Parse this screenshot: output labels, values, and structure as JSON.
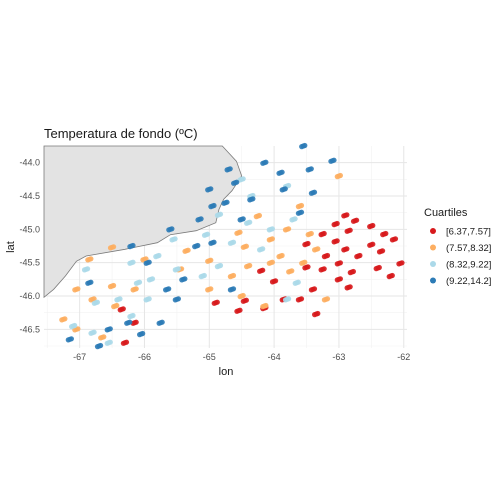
{
  "chart_data": {
    "type": "scatter",
    "title": "Temperatura de fondo (ºC)",
    "xlabel": "lon",
    "ylabel": "lat",
    "xlim": [
      -67.55,
      -61.95
    ],
    "ylim": [
      -46.78,
      -43.75
    ],
    "xticks": [
      -67,
      -66,
      -65,
      -64,
      -63,
      -62
    ],
    "yticks": [
      -44.0,
      -44.5,
      -45.0,
      -45.5,
      -46.0,
      -46.5
    ],
    "xtick_labels": [
      "-67",
      "-66",
      "-65",
      "-64",
      "-63",
      "-62"
    ],
    "ytick_labels": [
      "-44.0",
      "-44.5",
      "-45.0",
      "-45.5",
      "-46.0",
      "-46.5"
    ],
    "grid": true,
    "legend_position": "right",
    "legend": {
      "title": "Cuartiles",
      "entries": [
        {
          "label": "[6.37,7.57]",
          "color": "#d7191c"
        },
        {
          "label": "(7.57,8.32]",
          "color": "#fdae61"
        },
        {
          "label": "(8.32,9.22]",
          "color": "#abd9e9"
        },
        {
          "label": "(9.22,14.2]",
          "color": "#2c7bb6"
        }
      ]
    },
    "land_color": "#e3e3e3",
    "land_outline": [
      [
        -67.55,
        -43.75
      ],
      [
        -64.8,
        -43.75
      ],
      [
        -64.58,
        -43.98
      ],
      [
        -64.5,
        -44.2
      ],
      [
        -64.65,
        -44.42
      ],
      [
        -64.78,
        -44.55
      ],
      [
        -64.85,
        -44.7
      ],
      [
        -64.9,
        -44.9
      ],
      [
        -65.2,
        -45.02
      ],
      [
        -65.6,
        -45.08
      ],
      [
        -65.8,
        -45.2
      ],
      [
        -66.3,
        -45.3
      ],
      [
        -66.9,
        -45.4
      ],
      [
        -67.05,
        -45.48
      ],
      [
        -67.22,
        -45.7
      ],
      [
        -67.4,
        -45.9
      ],
      [
        -67.55,
        -46.02
      ]
    ],
    "series": [
      {
        "name": "[6.37,7.57]",
        "color": "#d7191c",
        "points": [
          [
            -62.9,
            -44.79
          ],
          [
            -62.75,
            -44.87
          ],
          [
            -62.5,
            -44.95
          ],
          [
            -62.3,
            -45.07
          ],
          [
            -62.15,
            -45.15
          ],
          [
            -63.05,
            -44.92
          ],
          [
            -62.85,
            -45.02
          ],
          [
            -62.5,
            -45.23
          ],
          [
            -62.35,
            -45.33
          ],
          [
            -62.05,
            -45.51
          ],
          [
            -63.25,
            -45.07
          ],
          [
            -63.05,
            -45.18
          ],
          [
            -62.9,
            -45.3
          ],
          [
            -62.7,
            -45.4
          ],
          [
            -62.4,
            -45.58
          ],
          [
            -62.2,
            -45.7
          ],
          [
            -63.5,
            -45.22
          ],
          [
            -63.2,
            -45.4
          ],
          [
            -63.0,
            -45.51
          ],
          [
            -62.8,
            -45.64
          ],
          [
            -63.25,
            -45.6
          ],
          [
            -63.0,
            -45.75
          ],
          [
            -62.85,
            -45.87
          ],
          [
            -63.5,
            -45.57
          ],
          [
            -63.4,
            -45.9
          ],
          [
            -63.6,
            -46.05
          ],
          [
            -63.35,
            -46.27
          ],
          [
            -64.2,
            -45.62
          ],
          [
            -64.0,
            -45.78
          ],
          [
            -63.85,
            -46.05
          ],
          [
            -64.15,
            -46.18
          ],
          [
            -64.45,
            -46.07
          ],
          [
            -64.55,
            -46.22
          ],
          [
            -64.9,
            -46.1
          ],
          [
            -66.35,
            -46.2
          ],
          [
            -66.15,
            -46.4
          ],
          [
            -66.3,
            -46.7
          ]
        ]
      },
      {
        "name": "(7.57,8.32]",
        "color": "#fdae61",
        "points": [
          [
            -63.0,
            -44.2
          ],
          [
            -63.6,
            -44.65
          ],
          [
            -64.25,
            -44.8
          ],
          [
            -63.8,
            -45.0
          ],
          [
            -63.45,
            -45.07
          ],
          [
            -64.05,
            -45.15
          ],
          [
            -64.45,
            -45.26
          ],
          [
            -64.55,
            -45.05
          ],
          [
            -63.9,
            -45.4
          ],
          [
            -63.55,
            -45.5
          ],
          [
            -63.35,
            -45.3
          ],
          [
            -63.75,
            -45.63
          ],
          [
            -64.05,
            -45.5
          ],
          [
            -64.15,
            -46.15
          ],
          [
            -64.65,
            -45.7
          ],
          [
            -64.4,
            -45.55
          ],
          [
            -65.0,
            -45.47
          ],
          [
            -65.35,
            -45.32
          ],
          [
            -65.45,
            -45.6
          ],
          [
            -65.0,
            -45.9
          ],
          [
            -66.5,
            -45.27
          ],
          [
            -66.0,
            -45.45
          ],
          [
            -66.15,
            -45.9
          ],
          [
            -66.5,
            -45.85
          ],
          [
            -66.85,
            -45.45
          ],
          [
            -66.8,
            -46.05
          ],
          [
            -67.05,
            -45.9
          ],
          [
            -67.25,
            -46.35
          ],
          [
            -67.05,
            -46.5
          ],
          [
            -66.45,
            -46.15
          ],
          [
            -66.65,
            -46.62
          ],
          [
            -63.2,
            -46.05
          ],
          [
            -64.5,
            -46.0
          ]
        ]
      },
      {
        "name": "(8.32,9.22]",
        "color": "#abd9e9",
        "points": [
          [
            -64.5,
            -44.25
          ],
          [
            -64.35,
            -44.5
          ],
          [
            -63.8,
            -44.35
          ],
          [
            -64.85,
            -44.78
          ],
          [
            -64.4,
            -44.9
          ],
          [
            -64.05,
            -45.0
          ],
          [
            -63.7,
            -44.85
          ],
          [
            -64.2,
            -45.3
          ],
          [
            -63.8,
            -46.05
          ],
          [
            -64.65,
            -45.2
          ],
          [
            -65.05,
            -45.08
          ],
          [
            -65.55,
            -45.15
          ],
          [
            -65.1,
            -45.7
          ],
          [
            -65.5,
            -45.6
          ],
          [
            -65.8,
            -45.4
          ],
          [
            -65.9,
            -45.75
          ],
          [
            -66.2,
            -45.5
          ],
          [
            -66.1,
            -45.8
          ],
          [
            -65.95,
            -46.05
          ],
          [
            -66.4,
            -46.05
          ],
          [
            -66.9,
            -45.6
          ],
          [
            -66.75,
            -46.1
          ],
          [
            -67.1,
            -46.45
          ],
          [
            -66.8,
            -46.55
          ],
          [
            -66.55,
            -46.7
          ],
          [
            -66.2,
            -46.3
          ],
          [
            -63.65,
            -45.8
          ],
          [
            -64.85,
            -45.55
          ]
        ]
      },
      {
        "name": "(9.22,14.2]",
        "color": "#2c7bb6",
        "points": [
          [
            -63.55,
            -43.75
          ],
          [
            -63.1,
            -43.97
          ],
          [
            -64.15,
            -44.0
          ],
          [
            -63.9,
            -44.15
          ],
          [
            -63.45,
            -44.1
          ],
          [
            -63.85,
            -44.4
          ],
          [
            -63.6,
            -44.75
          ],
          [
            -63.4,
            -44.45
          ],
          [
            -64.7,
            -44.1
          ],
          [
            -64.6,
            -44.3
          ],
          [
            -64.35,
            -44.55
          ],
          [
            -64.75,
            -44.6
          ],
          [
            -65.0,
            -44.4
          ],
          [
            -64.95,
            -44.65
          ],
          [
            -64.5,
            -44.85
          ],
          [
            -65.15,
            -44.85
          ],
          [
            -65.2,
            -45.25
          ],
          [
            -65.6,
            -45.0
          ],
          [
            -65.4,
            -45.75
          ],
          [
            -65.65,
            -45.9
          ],
          [
            -65.5,
            -46.05
          ],
          [
            -65.95,
            -45.5
          ],
          [
            -65.75,
            -46.4
          ],
          [
            -66.05,
            -46.57
          ],
          [
            -66.25,
            -46.4
          ],
          [
            -66.2,
            -45.25
          ],
          [
            -66.85,
            -45.8
          ],
          [
            -67.15,
            -46.65
          ],
          [
            -66.7,
            -46.75
          ],
          [
            -66.55,
            -46.5
          ],
          [
            -64.65,
            -45.9
          ],
          [
            -64.95,
            -45.2
          ]
        ]
      }
    ]
  }
}
